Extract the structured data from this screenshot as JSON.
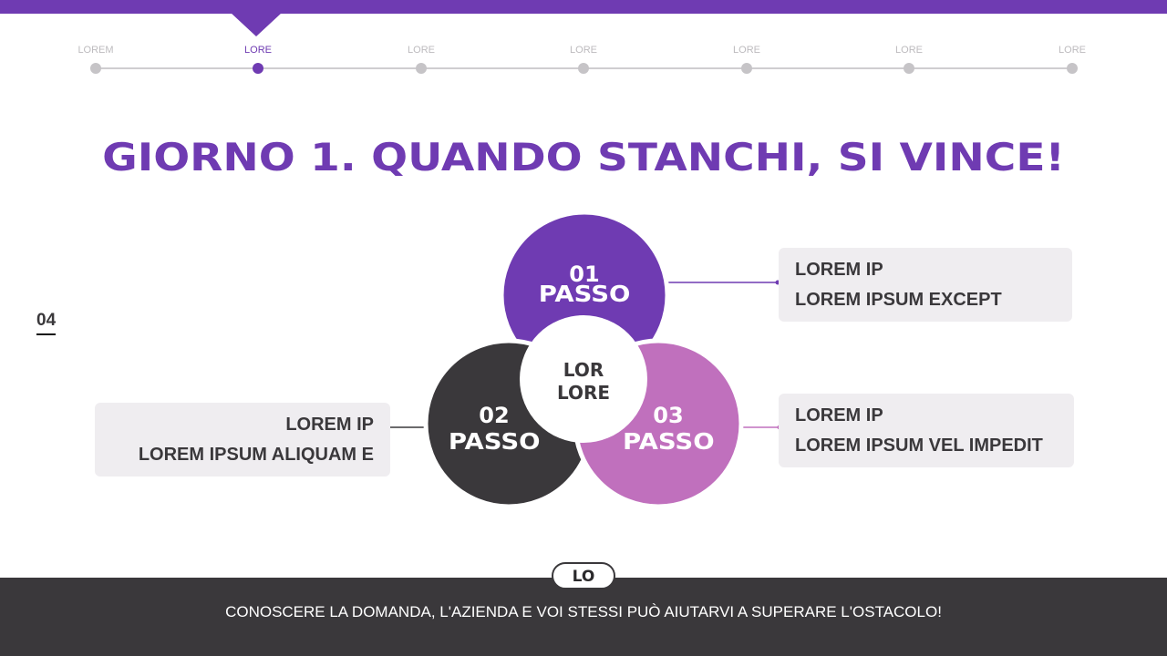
{
  "nav": {
    "items": [
      {
        "label": "LOREM"
      },
      {
        "label": "LORE",
        "active": true
      },
      {
        "label": "LORE"
      },
      {
        "label": "LORE"
      },
      {
        "label": "LORE"
      },
      {
        "label": "LORE"
      },
      {
        "label": "LORE"
      }
    ]
  },
  "title": "GIORNO 1. QUANDO STANCHI, SI VINCE!",
  "page_number": "04",
  "diagram": {
    "center": {
      "line1": "LOR",
      "line2": "LORE"
    },
    "steps": [
      {
        "number": "01",
        "label": "PASSO",
        "color": "#6f3bb2",
        "line1": "LOREM IP",
        "line2": "LOREM IPSUM EXCEPT"
      },
      {
        "number": "02",
        "label": "PASSO",
        "color": "#3a383b",
        "line1": "LOREM IP",
        "line2": "LOREM IPSUM ALIQUAM E"
      },
      {
        "number": "03",
        "label": "PASSO",
        "color": "#c070bd",
        "line1": "LOREM IP",
        "line2": "LOREM IPSUM VEL IMPEDIT"
      }
    ]
  },
  "footer": {
    "badge": "LO",
    "text": "CONOSCERE LA DOMANDA, L'AZIENDA E VOI STESSI PUÒ AIUTARVI A SUPERARE L'OSTACOLO!"
  },
  "colors": {
    "accent": "#6f3bb2",
    "dark": "#3a383b",
    "pink": "#c070bd"
  }
}
